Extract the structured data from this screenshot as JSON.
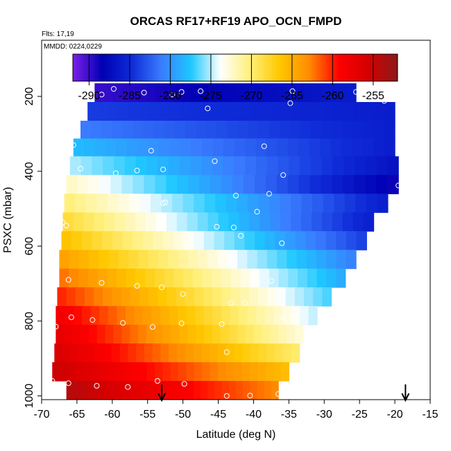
{
  "chart_data": {
    "type": "heatmap",
    "title": "ORCAS RF17+RF19 APO_OCN_FMPD",
    "flights_note": "Flts: 17,19",
    "dates_note": "MMDD: 0224,0229",
    "xlabel": "Latitude (deg N)",
    "ylabel": "PSXC (mbar)",
    "xlim": [
      -70,
      -15
    ],
    "ylim": [
      1010,
      50
    ],
    "x_ticks": [
      -70,
      -65,
      -60,
      -55,
      -50,
      -45,
      -40,
      -35,
      -30,
      -25,
      -20,
      -15
    ],
    "y_ticks": [
      200,
      400,
      600,
      800,
      1000
    ],
    "grid": false,
    "colorbar": {
      "placement": "top-inside",
      "range": [
        -292,
        -252
      ],
      "ticks": [
        -290,
        -285,
        -280,
        -275,
        -270,
        -265,
        -260,
        -255
      ]
    },
    "colors": {
      "scale": [
        "#7b1fe8",
        "#0000b4",
        "#0f2cd8",
        "#3a7bff",
        "#1ec8ff",
        "#ffffff",
        "#fff07a",
        "#ffc800",
        "#ff8c00",
        "#ff0000",
        "#d40000",
        "#8b1a1a"
      ]
    },
    "layers": [
      {
        "pressure": 190,
        "lat_start": -62.5,
        "lat_end": -25.5,
        "start_value": -290,
        "end_value": -286
      },
      {
        "pressure": 240,
        "lat_start": -63.5,
        "lat_end": -20.0,
        "start_value": -284,
        "end_value": -286
      },
      {
        "pressure": 290,
        "lat_start": -64.5,
        "lat_end": -20.0,
        "start_value": -281,
        "end_value": -286
      },
      {
        "pressure": 335,
        "lat_start": -65.5,
        "lat_end": -20.0,
        "start_value": -278,
        "end_value": -286
      },
      {
        "pressure": 385,
        "lat_start": -66.0,
        "lat_end": -19.5,
        "start_value": -275,
        "end_value": -287
      },
      {
        "pressure": 435,
        "lat_start": -66.5,
        "lat_end": -19.5,
        "start_value": -272,
        "end_value": -289
      },
      {
        "pressure": 485,
        "lat_start": -66.8,
        "lat_end": -21.0,
        "start_value": -270,
        "end_value": -286
      },
      {
        "pressure": 535,
        "lat_start": -67.0,
        "lat_end": -23.0,
        "start_value": -268,
        "end_value": -286
      },
      {
        "pressure": 585,
        "lat_start": -67.2,
        "lat_end": -24.0,
        "start_value": -266,
        "end_value": -284
      },
      {
        "pressure": 635,
        "lat_start": -67.5,
        "lat_end": -25.5,
        "start_value": -264,
        "end_value": -281
      },
      {
        "pressure": 685,
        "lat_start": -67.5,
        "lat_end": -27.0,
        "start_value": -262,
        "end_value": -279
      },
      {
        "pressure": 735,
        "lat_start": -67.8,
        "lat_end": -29.0,
        "start_value": -260,
        "end_value": -277
      },
      {
        "pressure": 785,
        "lat_start": -68.0,
        "lat_end": -31.0,
        "start_value": -258,
        "end_value": -275
      },
      {
        "pressure": 835,
        "lat_start": -68.0,
        "lat_end": -33.0,
        "start_value": -257,
        "end_value": -273
      },
      {
        "pressure": 885,
        "lat_start": -68.2,
        "lat_end": -33.5,
        "start_value": -256,
        "end_value": -270
      },
      {
        "pressure": 935,
        "lat_start": -68.5,
        "lat_end": -35.0,
        "start_value": -255,
        "end_value": -266
      },
      {
        "pressure": 985,
        "lat_start": -66.5,
        "lat_end": -36.5,
        "start_value": -254,
        "end_value": -263
      }
    ],
    "observations": [
      [
        -59.8,
        180
      ],
      [
        -61.5,
        195
      ],
      [
        -55.5,
        190
      ],
      [
        -51.5,
        195
      ],
      [
        -50.2,
        188
      ],
      [
        -47.5,
        186
      ],
      [
        -34.5,
        186
      ],
      [
        -25.5,
        188
      ],
      [
        -21.5,
        212
      ],
      [
        -34.8,
        218
      ],
      [
        -46.5,
        232
      ],
      [
        -65.5,
        330
      ],
      [
        -38.5,
        333
      ],
      [
        -54.5,
        345
      ],
      [
        -45.5,
        373
      ],
      [
        -64.5,
        393
      ],
      [
        -52.8,
        395
      ],
      [
        -56.5,
        398
      ],
      [
        -59.5,
        405
      ],
      [
        -35.8,
        410
      ],
      [
        -19.5,
        438
      ],
      [
        -37.8,
        460
      ],
      [
        -42.5,
        465
      ],
      [
        -52.5,
        483
      ],
      [
        -52.8,
        485
      ],
      [
        -39.5,
        508
      ],
      [
        -67.0,
        537
      ],
      [
        -66.5,
        545
      ],
      [
        -45.2,
        548
      ],
      [
        -42.8,
        550
      ],
      [
        -41.8,
        572
      ],
      [
        -36.0,
        592
      ],
      [
        -43.0,
        640
      ],
      [
        -66.2,
        690
      ],
      [
        -61.5,
        698
      ],
      [
        -56.5,
        706
      ],
      [
        -53.0,
        710
      ],
      [
        -40.0,
        698
      ],
      [
        -37.5,
        693
      ],
      [
        -50.0,
        728
      ],
      [
        -68.5,
        740
      ],
      [
        -43.2,
        752
      ],
      [
        -41.2,
        752
      ],
      [
        -68.0,
        815
      ],
      [
        -62.8,
        797
      ],
      [
        -58.5,
        805
      ],
      [
        -54.3,
        816
      ],
      [
        -50.2,
        806
      ],
      [
        -44.5,
        808
      ],
      [
        -65.8,
        790
      ],
      [
        -35.8,
        790
      ],
      [
        -43.8,
        883
      ],
      [
        -68.5,
        960
      ],
      [
        -66.2,
        966
      ],
      [
        -62.2,
        973
      ],
      [
        -57.8,
        976
      ],
      [
        -53.6,
        960
      ],
      [
        -49.8,
        968
      ],
      [
        -43.8,
        1000
      ],
      [
        -40.5,
        999
      ],
      [
        -36.5,
        995
      ]
    ],
    "arrows": [
      {
        "lat": -53.0
      },
      {
        "lat": -18.5
      }
    ]
  }
}
